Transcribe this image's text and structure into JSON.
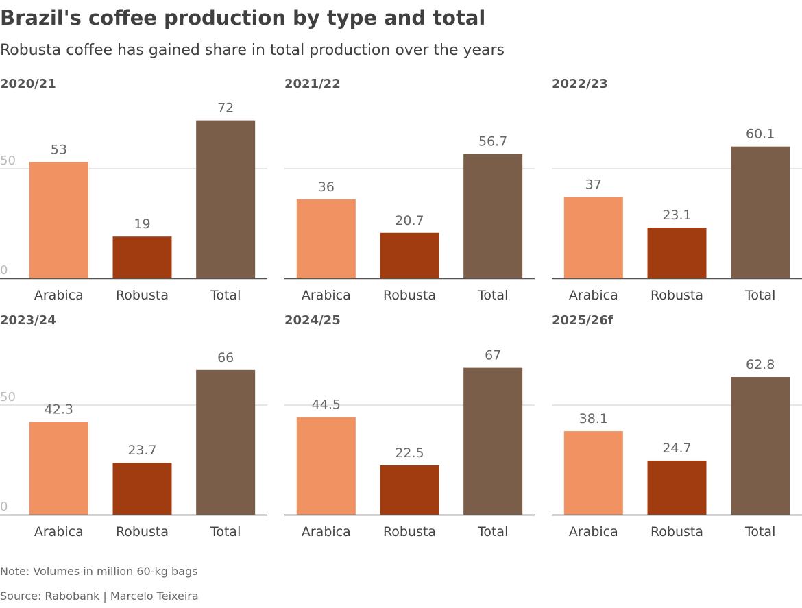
{
  "title": "Brazil's coffee production by type and total",
  "subtitle": "Robusta coffee has gained share in total production over the years",
  "note": "Note: Volumes in million 60-kg bags",
  "source": "Source: Rabobank | Marcelo Teixeira",
  "colors": {
    "Arabica": "#F09262",
    "Robusta": "#A03C10",
    "Total": "#7A5E4A"
  },
  "chart_data": [
    {
      "type": "bar",
      "title": "2020/21",
      "categories": [
        "Arabica",
        "Robusta",
        "Total"
      ],
      "values": [
        53,
        19,
        72
      ],
      "labels": [
        "53",
        "19",
        "72"
      ],
      "ylim": [
        0,
        75
      ],
      "yticks": [
        "0",
        "50"
      ],
      "grid": true
    },
    {
      "type": "bar",
      "title": "2021/22",
      "categories": [
        "Arabica",
        "Robusta",
        "Total"
      ],
      "values": [
        36,
        20.7,
        56.7
      ],
      "labels": [
        "36",
        "20.7",
        "56.7"
      ],
      "ylim": [
        0,
        75
      ],
      "grid": true
    },
    {
      "type": "bar",
      "title": "2022/23",
      "categories": [
        "Arabica",
        "Robusta",
        "Total"
      ],
      "values": [
        37,
        23.1,
        60.1
      ],
      "labels": [
        "37",
        "23.1",
        "60.1"
      ],
      "ylim": [
        0,
        75
      ],
      "grid": true
    },
    {
      "type": "bar",
      "title": "2023/24",
      "categories": [
        "Arabica",
        "Robusta",
        "Total"
      ],
      "values": [
        42.3,
        23.7,
        66
      ],
      "labels": [
        "42.3",
        "23.7",
        "66"
      ],
      "ylim": [
        0,
        75
      ],
      "yticks": [
        "0",
        "50"
      ],
      "grid": true
    },
    {
      "type": "bar",
      "title": "2024/25",
      "categories": [
        "Arabica",
        "Robusta",
        "Total"
      ],
      "values": [
        44.5,
        22.5,
        67
      ],
      "labels": [
        "44.5",
        "22.5",
        "67"
      ],
      "ylim": [
        0,
        75
      ],
      "grid": true
    },
    {
      "type": "bar",
      "title": "2025/26f",
      "categories": [
        "Arabica",
        "Robusta",
        "Total"
      ],
      "values": [
        38.1,
        24.7,
        62.8
      ],
      "labels": [
        "38.1",
        "24.7",
        "62.8"
      ],
      "ylim": [
        0,
        75
      ],
      "grid": true
    }
  ]
}
